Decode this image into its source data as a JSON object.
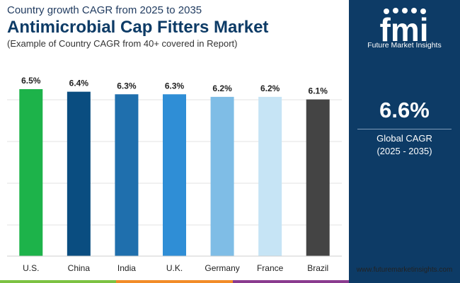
{
  "header": {
    "kicker": "Country growth CAGR from 2025 to 2035",
    "title": "Antimicrobial Cap Fitters Market",
    "subtitle": "(Example of Country CAGR from 40+ covered in Report)"
  },
  "brand": {
    "logo_text": "fmi",
    "tagline": "Future Market Insights",
    "website": "www.futuremarketinsights.com"
  },
  "kpi": {
    "value": "6.6%",
    "label": "Global CAGR",
    "period": "(2025 - 2035)"
  },
  "colors": {
    "brand_navy": "#0d3b66",
    "stripe": [
      "#7cc242",
      "#f28c28",
      "#8a3b8f"
    ]
  },
  "chart_data": {
    "type": "bar",
    "title": "",
    "xlabel": "",
    "ylabel": "",
    "ylim": [
      0,
      6.5
    ],
    "grid": true,
    "categories": [
      "U.S.",
      "China",
      "India",
      "U.K.",
      "Germany",
      "France",
      "Brazil"
    ],
    "values": [
      6.5,
      6.4,
      6.3,
      6.3,
      6.2,
      6.2,
      6.1
    ],
    "value_labels": [
      "6.5%",
      "6.4%",
      "6.3%",
      "6.3%",
      "6.2%",
      "6.2%",
      "6.1%"
    ],
    "bar_colors": [
      "#1db34a",
      "#0a4d80",
      "#1f6fad",
      "#2f8ed6",
      "#7fbde6",
      "#c6e4f5",
      "#444444"
    ]
  }
}
